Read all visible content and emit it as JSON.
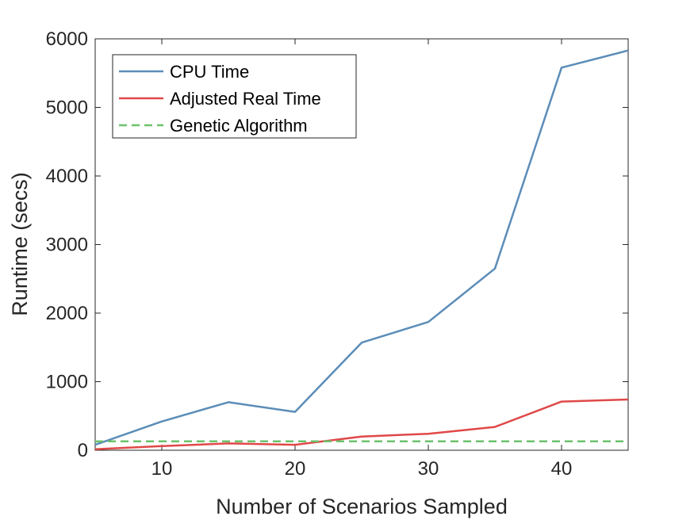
{
  "chart_data": {
    "type": "line",
    "xlabel": "Number of Scenarios Sampled",
    "ylabel": "Runtime (secs)",
    "xlim": [
      5,
      45
    ],
    "ylim": [
      0,
      6000
    ],
    "xticks": [
      10,
      20,
      30,
      40
    ],
    "yticks": [
      0,
      1000,
      2000,
      3000,
      4000,
      5000,
      6000
    ],
    "grid": false,
    "legend_position": "top-left",
    "series": [
      {
        "name": "CPU Time",
        "color": "#5b8db8",
        "style": "solid",
        "x": [
          5,
          10,
          15,
          20,
          25,
          30,
          35,
          40,
          45
        ],
        "y": [
          80,
          420,
          700,
          560,
          1570,
          1870,
          2650,
          5580,
          5830
        ]
      },
      {
        "name": "Adjusted Real Time",
        "color": "#e04848",
        "style": "solid",
        "x": [
          5,
          10,
          15,
          20,
          25,
          30,
          35,
          40,
          45
        ],
        "y": [
          15,
          60,
          100,
          80,
          200,
          240,
          340,
          710,
          740
        ]
      },
      {
        "name": "Genetic Algorithm",
        "color": "#6cc26c",
        "style": "dashed",
        "x": [
          5,
          45
        ],
        "y": [
          130,
          130
        ]
      }
    ]
  }
}
